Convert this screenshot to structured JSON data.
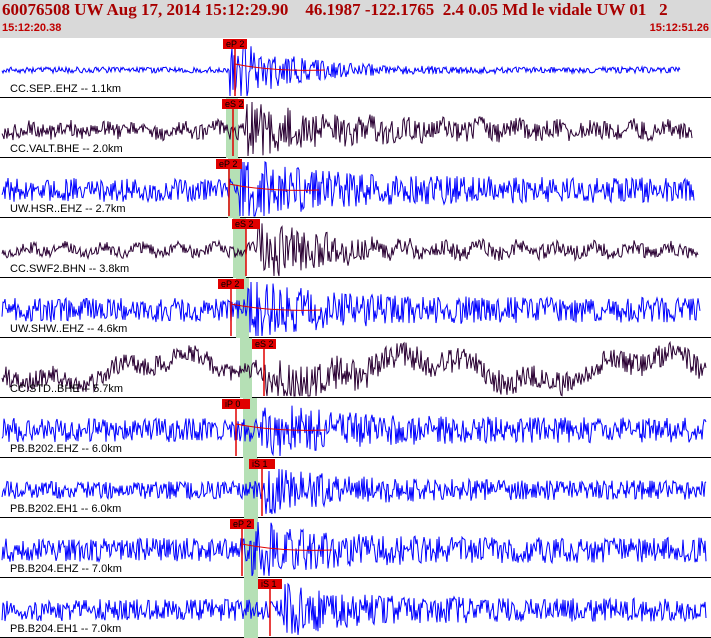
{
  "header": {
    "title": "60076508 UW Aug 17, 2014 15:12:29.90    46.1987 -122.1765  2.4 0.05 Md le vidale UW 01   2",
    "time_start": "15:12:20.38",
    "time_end": "15:12:51.26"
  },
  "colors": {
    "header_bg": "#d9d9d9",
    "header_text": "#a80000",
    "trace_blue": "#0000ff",
    "trace_dark": "#2a0033",
    "pick_red": "#e00000",
    "window_green": "#b5e0b5"
  },
  "traces": [
    {
      "label": "CC.SEP..EHZ -- 1.1km",
      "pick": "eP 2",
      "color": "blue"
    },
    {
      "label": "CC.VALT.BHE -- 2.0km",
      "pick": "eS 2",
      "color": "dark"
    },
    {
      "label": "UW.HSR..EHZ -- 2.7km",
      "pick": "eP 2",
      "color": "blue"
    },
    {
      "label": "CC.SWF2.BHN -- 3.8km",
      "pick": "eS 2",
      "color": "dark"
    },
    {
      "label": "UW.SHW..EHZ -- 4.6km",
      "pick": "eP 2",
      "color": "blue"
    },
    {
      "label": "CC.STD..BHE -- 5.7km",
      "pick": "eS 2",
      "color": "dark"
    },
    {
      "label": "PB.B202.EHZ -- 6.0km",
      "pick": "iP 0",
      "color": "blue"
    },
    {
      "label": "PB.B202.EH1 -- 6.0km",
      "pick": "iS 1",
      "color": "blue"
    },
    {
      "label": "PB.B204.EHZ -- 7.0km",
      "pick": "eP 2",
      "color": "blue"
    },
    {
      "label": "PB.B204.EH1 -- 7.0km",
      "pick": "iS 1",
      "color": "blue"
    }
  ]
}
